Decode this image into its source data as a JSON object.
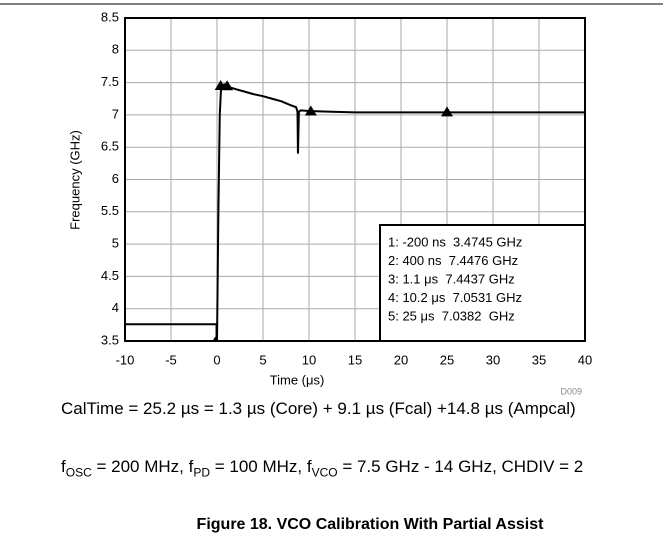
{
  "chart_data": {
    "type": "line",
    "xlabel": "Time (μs)",
    "ylabel": "Frequency (GHz)",
    "code": "D009",
    "xlim": [
      -10,
      40
    ],
    "xticks": [
      -10,
      -5,
      0,
      5,
      10,
      15,
      20,
      25,
      30,
      35,
      40
    ],
    "ylim": [
      3.5,
      8.5
    ],
    "yticks": [
      3.5,
      4,
      4.5,
      5,
      5.5,
      6,
      6.5,
      7,
      7.5,
      8,
      8.5
    ],
    "grid": true,
    "series": [
      {
        "color": "#000000",
        "x": [
          -10,
          -0.05,
          -0.05,
          0,
          0.15,
          0.3,
          0.45,
          0.8,
          1.1,
          2,
          3,
          4,
          5,
          6,
          7,
          8,
          8.6,
          8.75,
          8.8,
          8.9,
          9.1,
          10,
          12,
          15,
          20,
          25,
          30,
          35,
          40
        ],
        "values": [
          3.76,
          3.76,
          3.5,
          3.5,
          5.5,
          7.0,
          7.45,
          7.47,
          7.44,
          7.4,
          7.36,
          7.32,
          7.29,
          7.25,
          7.21,
          7.15,
          7.12,
          7.05,
          6.4,
          7.05,
          7.07,
          7.06,
          7.05,
          7.04,
          7.04,
          7.04,
          7.04,
          7.04,
          7.04
        ]
      }
    ],
    "markers": {
      "x": [
        -0.2,
        0.4,
        1.1,
        10.2,
        25
      ],
      "values": [
        3.4745,
        7.4476,
        7.4437,
        7.0531,
        7.0382
      ]
    },
    "marker_labels": [
      "1: -200 ns  3.4745 GHz",
      "2: 400 ns  7.4476 GHz",
      "3: 1.1 μs  7.4437 GHz",
      "4: 10.2 μs  7.0531 GHz",
      "5: 25 μs  7.0382  GHz"
    ]
  },
  "notes": {
    "caltime": "CalTime = 25.2 µs = 1.3 µs (Core) + 9.1 µs (Fcal) +14.8 µs (Ampcal)",
    "settings": [
      "f",
      "OSC",
      " = 200 MHz, f",
      "PD",
      " = 100 MHz, f",
      "VCO",
      " = 7.5 GHz - 14 GHz, CHDIV = 2"
    ]
  },
  "caption": "Figure 18. VCO Calibration With Partial Assist"
}
